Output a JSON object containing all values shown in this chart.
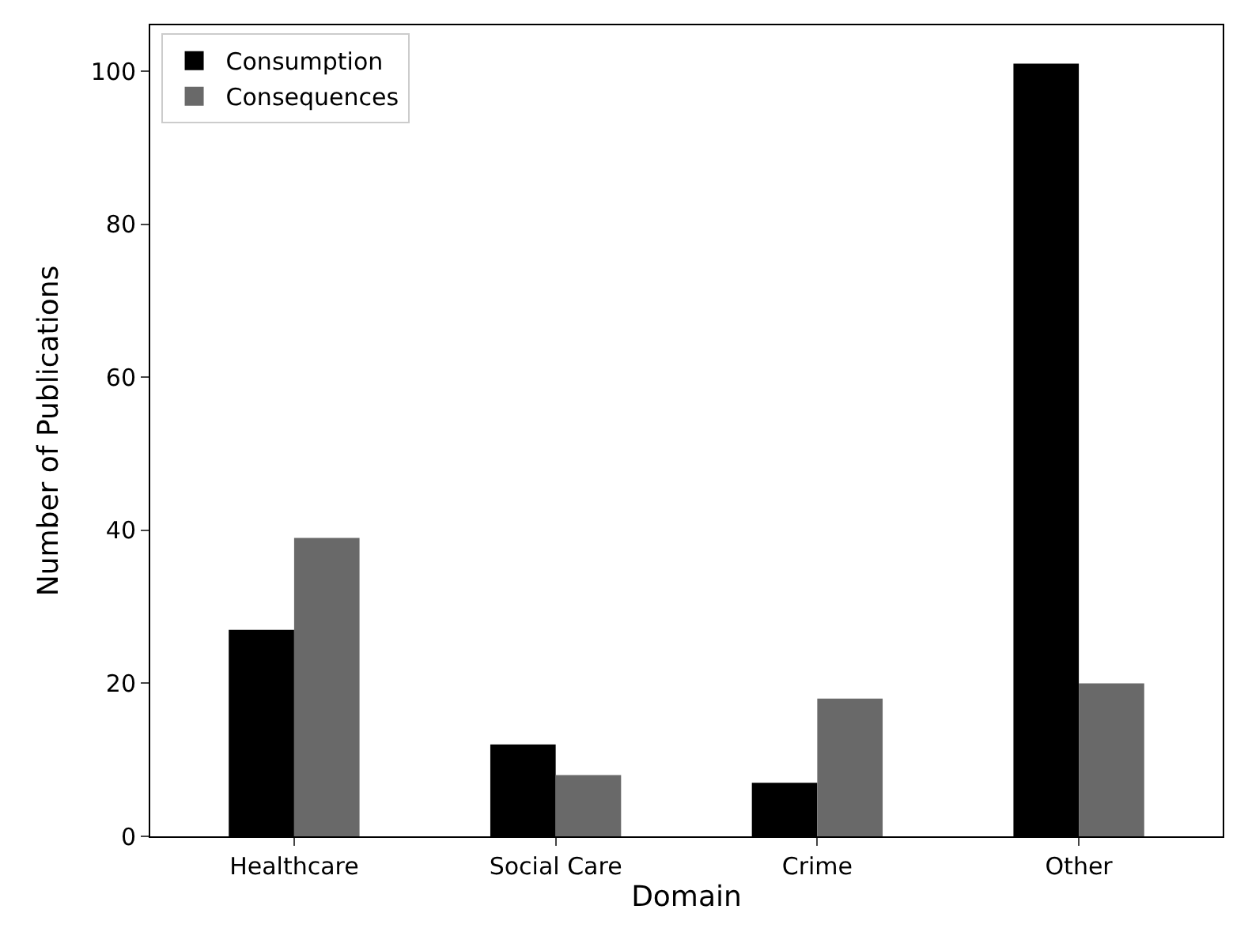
{
  "chart_data": {
    "type": "bar",
    "xlabel": "Domain",
    "ylabel": "Number of Publications",
    "categories": [
      "Healthcare",
      "Social Care",
      "Crime",
      "Other"
    ],
    "series": [
      {
        "name": "Consumption",
        "color": "#000000",
        "values": [
          27,
          12,
          7,
          101
        ]
      },
      {
        "name": "Consequences",
        "color": "#696969",
        "values": [
          39,
          8,
          18,
          20
        ]
      }
    ],
    "ylim": [
      0,
      106
    ],
    "yticks": [
      0,
      20,
      40,
      60,
      80,
      100
    ],
    "legend": "top left"
  }
}
